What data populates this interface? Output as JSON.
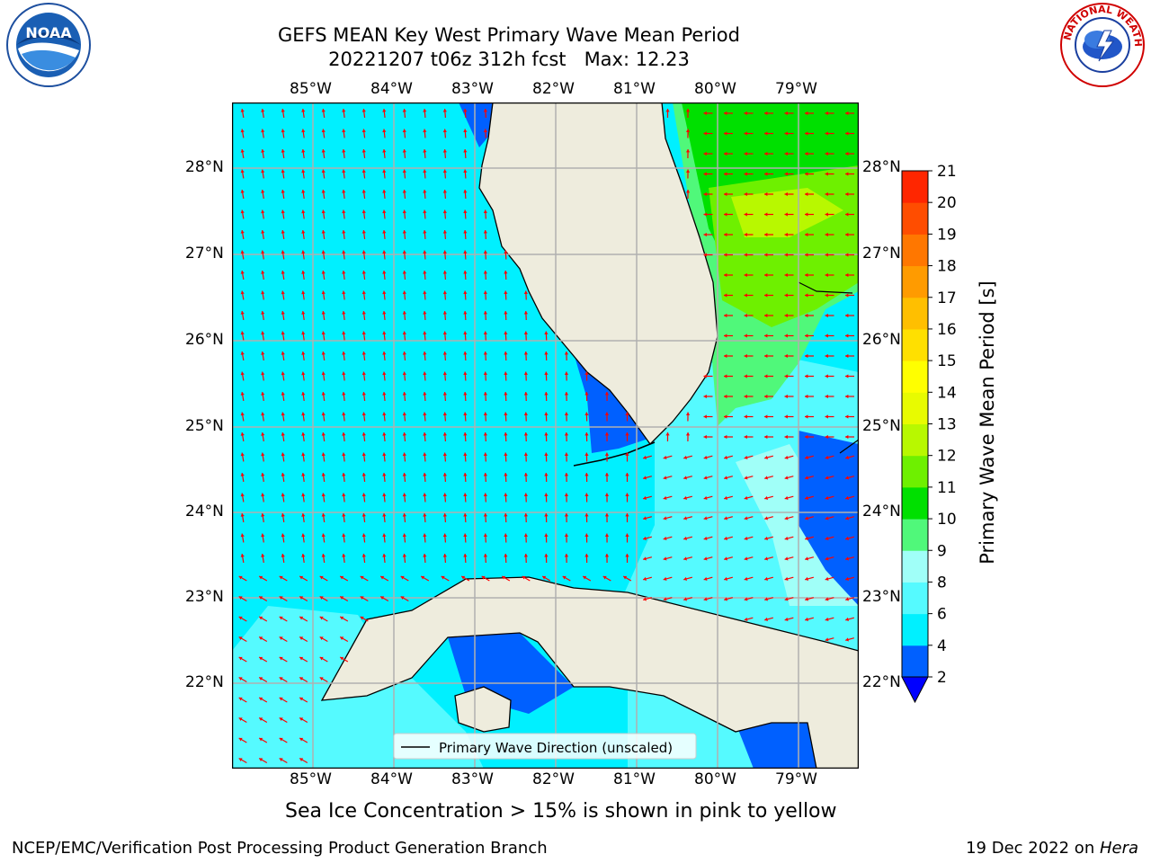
{
  "title_line1": "GEFS MEAN Key West Primary Wave Mean Period",
  "title_line2": "20221207 t06z 312h fcst   Max: 12.23",
  "longitude_labels": [
    "85°W",
    "84°W",
    "83°W",
    "82°W",
    "81°W",
    "80°W",
    "79°W"
  ],
  "latitude_labels": [
    "28°N",
    "27°N",
    "26°N",
    "25°N",
    "24°N",
    "23°N",
    "22°N"
  ],
  "colorbar": {
    "label": "Primary Wave Mean Period [s]",
    "ticks": [
      "2",
      "4",
      "6",
      "8",
      "9",
      "10",
      "11",
      "12",
      "13",
      "14",
      "15",
      "16",
      "17",
      "18",
      "19",
      "20",
      "21"
    ],
    "colors": [
      "#0060ff",
      "#00f0ff",
      "#55faff",
      "#a0fff8",
      "#50f87a",
      "#00e000",
      "#6ef000",
      "#b8f800",
      "#e8fb00",
      "#ffff00",
      "#ffe000",
      "#ffbf00",
      "#ff9b00",
      "#ff7700",
      "#ff4d00",
      "#ff2600",
      "#ff0000"
    ],
    "extend_color": "#0000ff"
  },
  "legend_label": "Primary Wave Direction (unscaled)",
  "caption": "Sea Ice Concentration > 15% is shown in pink to yellow",
  "footer_left": "NCEP/EMC/Verification Post Processing Product Generation Branch",
  "footer_right_prefix": "19 Dec 2022 on ",
  "footer_right_host": "Hera",
  "logos": {
    "left": "NOAA",
    "right_text": "NATIONAL WEATHER SERVICE"
  },
  "map_colors": {
    "land": "#eeecdd",
    "arrow": "#ff0000",
    "grid": "#b0b0b0"
  }
}
